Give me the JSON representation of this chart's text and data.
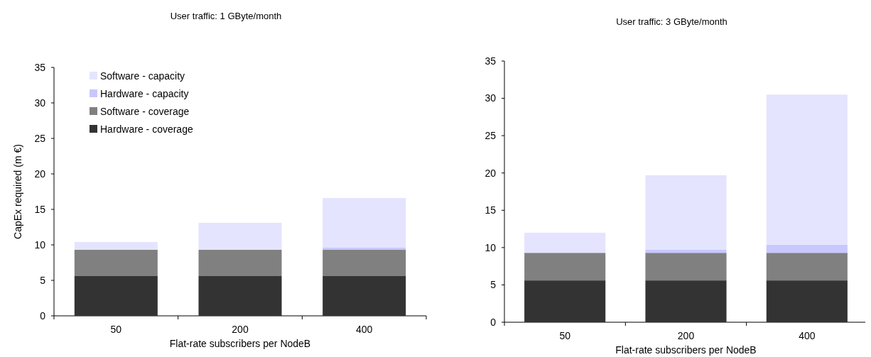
{
  "chart_data": [
    {
      "type": "bar",
      "stacked": true,
      "title": "User traffic: 1 GByte/month",
      "xlabel": "Flat-rate subscribers per NodeB",
      "ylabel": "CapEx required (m €)",
      "categories": [
        "50",
        "200",
        "400"
      ],
      "ylim": [
        0,
        35
      ],
      "yticks": [
        0,
        5,
        10,
        15,
        20,
        25,
        30,
        35
      ],
      "legend": "top left",
      "series": [
        {
          "name": "Hardware - coverage",
          "color": "#333333",
          "values": [
            5.6,
            5.6,
            5.6
          ]
        },
        {
          "name": "Software  - coverage",
          "color": "#808080",
          "values": [
            3.7,
            3.7,
            3.7
          ]
        },
        {
          "name": "Hardware - capacity",
          "color": "#c8c8ff",
          "values": [
            0,
            0,
            0.3
          ]
        },
        {
          "name": "Software  - capacity",
          "color": "#e4e4ff",
          "values": [
            1.1,
            3.8,
            7.0
          ]
        }
      ]
    },
    {
      "type": "bar",
      "stacked": true,
      "title": "User traffic: 3 GByte/month",
      "xlabel": "Flat-rate subscribers per NodeB",
      "categories": [
        "50",
        "200",
        "400"
      ],
      "ylim": [
        0,
        35
      ],
      "yticks": [
        0,
        5,
        10,
        15,
        20,
        25,
        30,
        35
      ],
      "series": [
        {
          "color": "#333333",
          "values": [
            5.6,
            5.6,
            5.6
          ]
        },
        {
          "color": "#808080",
          "values": [
            3.7,
            3.7,
            3.7
          ]
        },
        {
          "color": "#c8c8ff",
          "values": [
            0,
            0.4,
            1.1
          ]
        },
        {
          "color": "#e4e4ff",
          "values": [
            2.7,
            10.0,
            20.1
          ]
        }
      ]
    }
  ]
}
